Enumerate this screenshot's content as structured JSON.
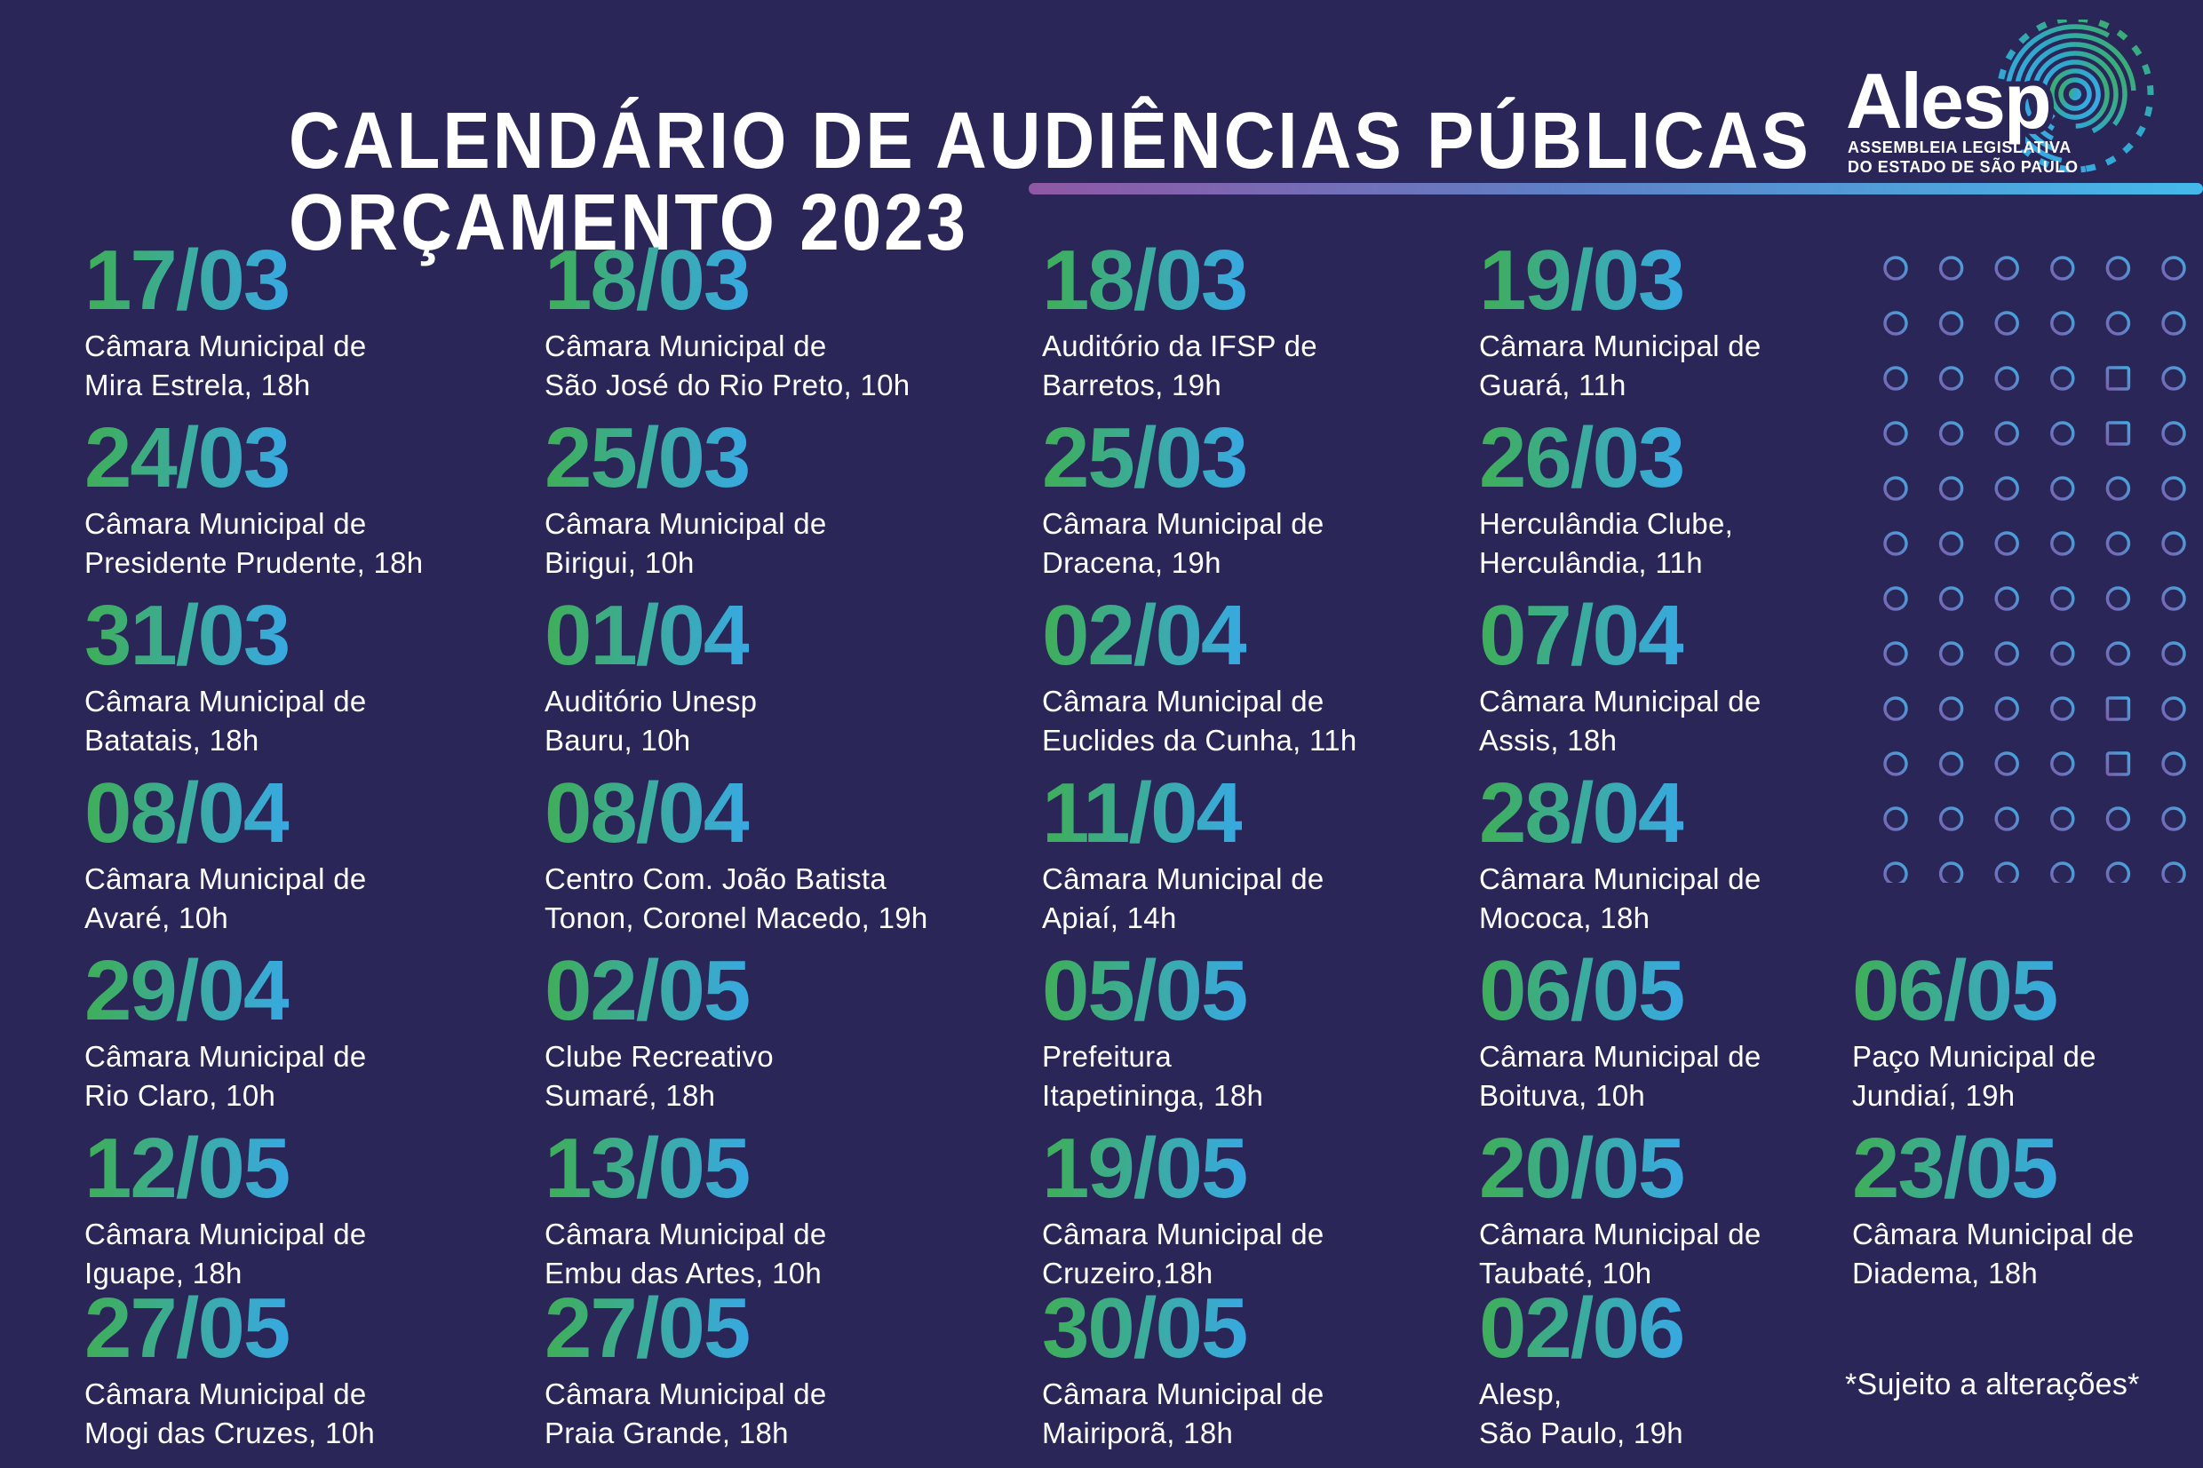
{
  "title": {
    "line1": "CALENDÁRIO DE AUDIÊNCIAS PÚBLICAS",
    "line2": "ORÇAMENTO 2023"
  },
  "logo": {
    "wordmark": "Alesp",
    "sub1": "ASSEMBLEIA LEGISLATIVA",
    "sub2": "DO ESTADO DE SÃO PAULO"
  },
  "footnote": "*Sujeito a alterações*",
  "colors": {
    "background": "#2A2758",
    "text": "#FFFFFF",
    "date_gradient_start": "#3FAE58",
    "date_gradient_end": "#38A9E2",
    "rule_gradient_start": "#8F58A5",
    "rule_gradient_end": "#44B9EA",
    "pattern_purple": "#7D5FAE",
    "pattern_blue": "#41AAE2"
  },
  "entries": [
    {
      "date": "17/03",
      "venue": [
        "Câmara Municipal de",
        "Mira Estrela, 18h"
      ],
      "col": 1,
      "row": 1
    },
    {
      "date": "18/03",
      "venue": [
        "Câmara Municipal de",
        "São José do Rio Preto, 10h"
      ],
      "col": 2,
      "row": 1
    },
    {
      "date": "18/03",
      "venue": [
        "Auditório da IFSP de",
        "Barretos, 19h"
      ],
      "col": 3,
      "row": 1
    },
    {
      "date": "19/03",
      "venue": [
        "Câmara Municipal de",
        "Guará, 11h"
      ],
      "col": 4,
      "row": 1
    },
    {
      "date": "24/03",
      "venue": [
        "Câmara Municipal de",
        "Presidente Prudente, 18h"
      ],
      "col": 1,
      "row": 2
    },
    {
      "date": "25/03",
      "venue": [
        "Câmara Municipal de",
        "Birigui, 10h"
      ],
      "col": 2,
      "row": 2
    },
    {
      "date": "25/03",
      "venue": [
        "Câmara Municipal de",
        "Dracena, 19h"
      ],
      "col": 3,
      "row": 2
    },
    {
      "date": "26/03",
      "venue": [
        "Herculândia Clube,",
        "Herculândia, 11h"
      ],
      "col": 4,
      "row": 2
    },
    {
      "date": "31/03",
      "venue": [
        "Câmara Municipal de",
        "Batatais, 18h"
      ],
      "col": 1,
      "row": 3
    },
    {
      "date": "01/04",
      "venue": [
        "Auditório Unesp",
        "Bauru, 10h"
      ],
      "col": 2,
      "row": 3
    },
    {
      "date": "02/04",
      "venue": [
        "Câmara Municipal de",
        "Euclides da Cunha, 11h"
      ],
      "col": 3,
      "row": 3
    },
    {
      "date": "07/04",
      "venue": [
        "Câmara Municipal de",
        "Assis, 18h"
      ],
      "col": 4,
      "row": 3
    },
    {
      "date": "08/04",
      "venue": [
        "Câmara Municipal de",
        "Avaré, 10h"
      ],
      "col": 1,
      "row": 4
    },
    {
      "date": "08/04",
      "venue": [
        "Centro Com. João Batista",
        "Tonon, Coronel Macedo, 19h"
      ],
      "col": 2,
      "row": 4
    },
    {
      "date": "11/04",
      "venue": [
        "Câmara Municipal de",
        "Apiaí, 14h"
      ],
      "col": 3,
      "row": 4
    },
    {
      "date": "28/04",
      "venue": [
        "Câmara Municipal de",
        "Mococa, 18h"
      ],
      "col": 4,
      "row": 4
    },
    {
      "date": "29/04",
      "venue": [
        "Câmara Municipal de",
        "Rio Claro, 10h"
      ],
      "col": 1,
      "row": 5
    },
    {
      "date": "02/05",
      "venue": [
        "Clube Recreativo",
        "Sumaré, 18h"
      ],
      "col": 2,
      "row": 5
    },
    {
      "date": "05/05",
      "venue": [
        "Prefeitura",
        "Itapetininga, 18h"
      ],
      "col": 3,
      "row": 5
    },
    {
      "date": "06/05",
      "venue": [
        "Câmara Municipal de",
        "Boituva, 10h"
      ],
      "col": 4,
      "row": 5
    },
    {
      "date": "06/05",
      "venue": [
        "Paço Municipal de",
        "Jundiaí, 19h"
      ],
      "col": 5,
      "row": 5
    },
    {
      "date": "12/05",
      "venue": [
        "Câmara Municipal de",
        "Iguape, 18h"
      ],
      "col": 1,
      "row": 6
    },
    {
      "date": "13/05",
      "venue": [
        "Câmara Municipal de",
        "Embu das Artes, 10h"
      ],
      "col": 2,
      "row": 6
    },
    {
      "date": "19/05",
      "venue": [
        "Câmara Municipal de",
        "Cruzeiro,18h"
      ],
      "col": 3,
      "row": 6
    },
    {
      "date": "20/05",
      "venue": [
        "Câmara Municipal de",
        "Taubaté, 10h"
      ],
      "col": 4,
      "row": 6
    },
    {
      "date": "23/05",
      "venue": [
        "Câmara Municipal de",
        "Diadema, 18h"
      ],
      "col": 5,
      "row": 6
    },
    {
      "date": "27/05",
      "venue": [
        "Câmara Municipal de",
        "Mogi das Cruzes, 10h"
      ],
      "col": 1,
      "row": 7
    },
    {
      "date": "27/05",
      "venue": [
        "Câmara Municipal de",
        "Praia Grande, 18h"
      ],
      "col": 2,
      "row": 7
    },
    {
      "date": "30/05",
      "venue": [
        "Câmara Municipal de",
        "Mairiporã, 18h"
      ],
      "col": 3,
      "row": 7
    },
    {
      "date": "02/06",
      "venue": [
        "Alesp,",
        "São Paulo, 19h"
      ],
      "col": 4,
      "row": 7
    }
  ],
  "pattern": {
    "rows": 12,
    "cols": 6,
    "squares": [
      [
        3,
        5
      ],
      [
        4,
        5
      ],
      [
        9,
        5
      ],
      [
        10,
        5
      ]
    ]
  }
}
